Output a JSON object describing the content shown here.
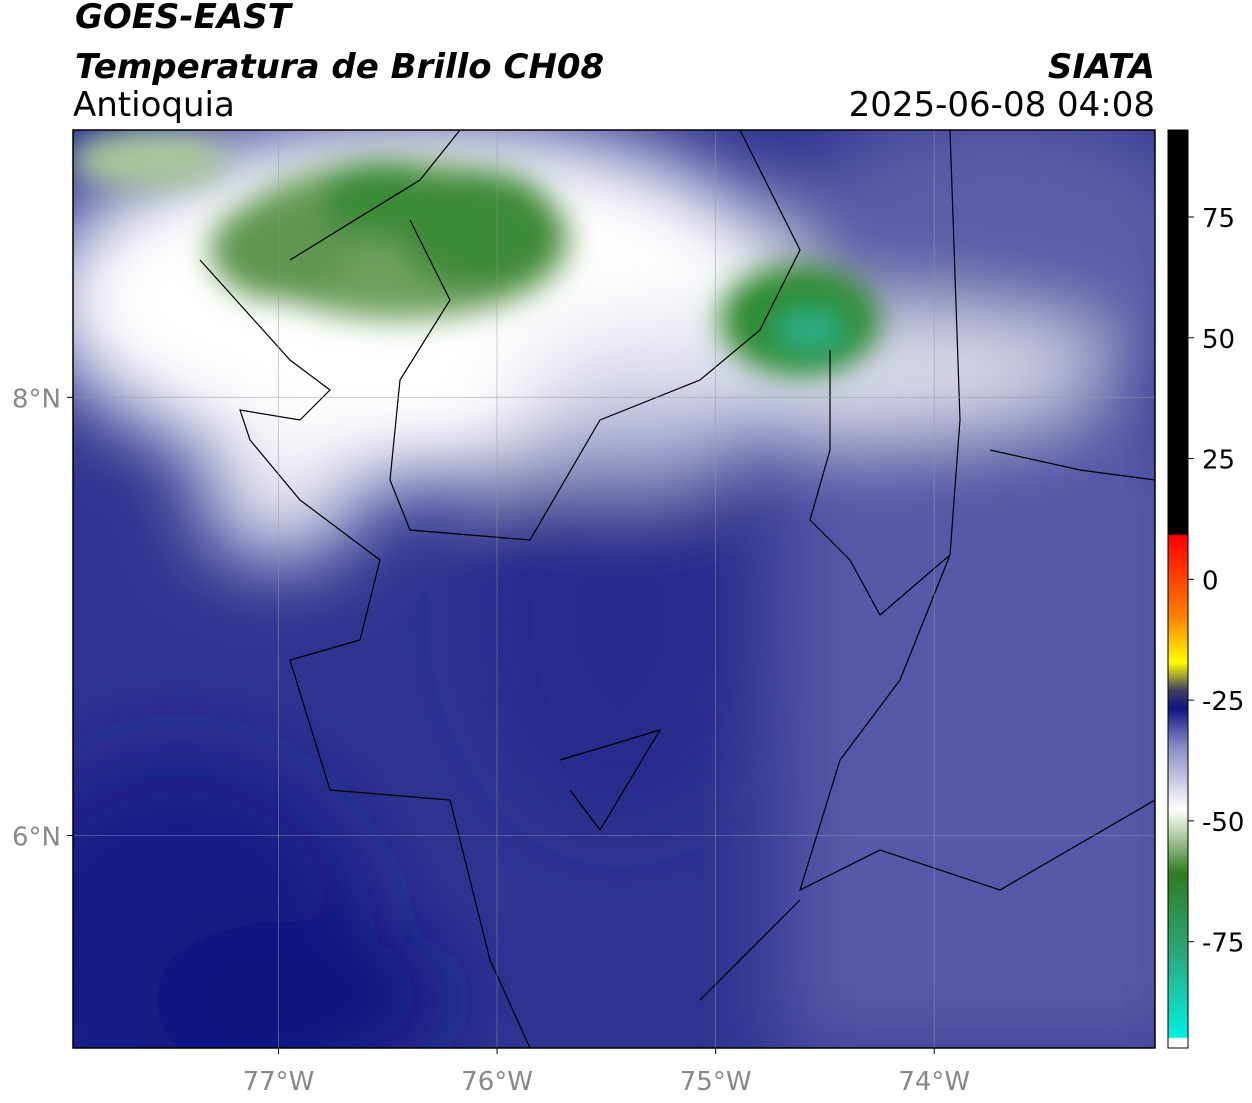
{
  "header": {
    "title": "GOES-EAST",
    "subtitle": "Temperatura de Brillo CH08",
    "region": "Antioquia",
    "source": "SIATA",
    "datetime": "2025-06-08 04:08"
  },
  "map": {
    "xlim": [
      -77.94,
      -72.99
    ],
    "ylim": [
      5.03,
      9.22
    ],
    "xticks": [
      {
        "value": -77,
        "label": "77°W"
      },
      {
        "value": -76,
        "label": "76°W"
      },
      {
        "value": -75,
        "label": "75°W"
      },
      {
        "value": -74,
        "label": "74°W"
      }
    ],
    "yticks": [
      {
        "value": 8,
        "label": "8°N"
      },
      {
        "value": 6,
        "label": "6°N"
      }
    ],
    "grid": true
  },
  "colorbar": {
    "lim": [
      -97,
      93
    ],
    "ticks": [
      75,
      50,
      25,
      0,
      -25,
      -50,
      -75
    ]
  }
}
